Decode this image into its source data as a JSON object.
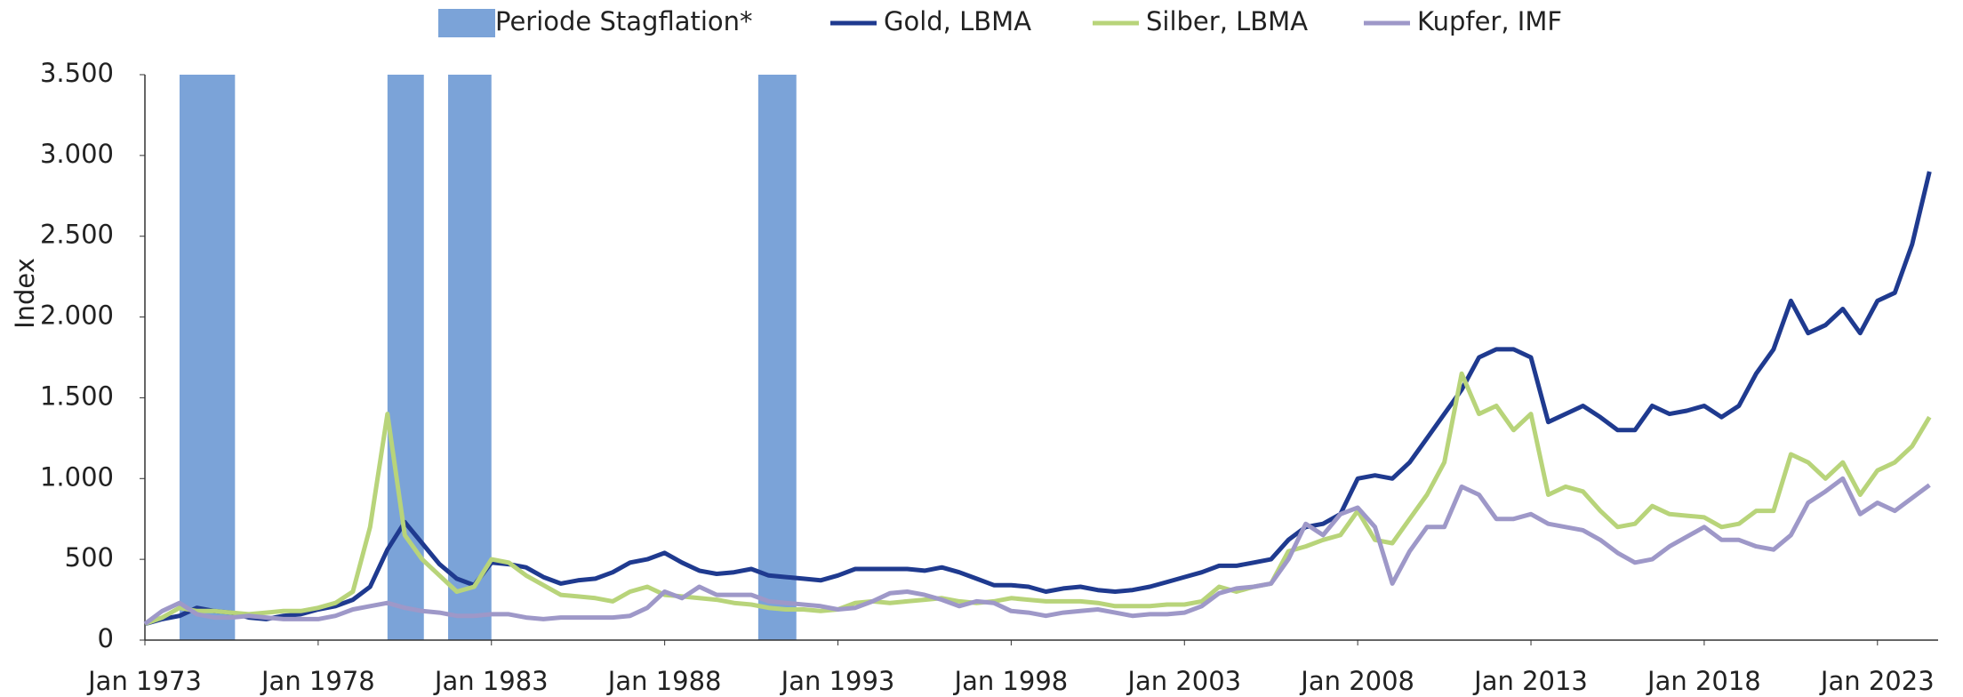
{
  "chart_data": {
    "type": "line",
    "y_label": "Index",
    "periods": {
      "name": "Periode Stagflation*",
      "color": "#7ba3d8",
      "ranges": [
        [
          1974.0,
          1975.6
        ],
        [
          1980.0,
          1981.05
        ],
        [
          1981.75,
          1983.0
        ],
        [
          1990.7,
          1991.8
        ]
      ]
    },
    "x": [
      1973,
      1973.5,
      1974,
      1974.5,
      1975,
      1975.5,
      1976,
      1976.5,
      1977,
      1977.5,
      1978,
      1978.5,
      1979,
      1979.5,
      1980,
      1980.5,
      1981,
      1981.5,
      1982,
      1982.5,
      1983,
      1983.5,
      1984,
      1984.5,
      1985,
      1985.5,
      1986,
      1986.5,
      1987,
      1987.5,
      1988,
      1988.5,
      1989,
      1989.5,
      1990,
      1990.5,
      1991,
      1991.5,
      1992,
      1992.5,
      1993,
      1993.5,
      1994,
      1994.5,
      1995,
      1995.5,
      1996,
      1996.5,
      1997,
      1997.5,
      1998,
      1998.5,
      1999,
      1999.5,
      2000,
      2000.5,
      2001,
      2001.5,
      2002,
      2002.5,
      2003,
      2003.5,
      2004,
      2004.5,
      2005,
      2005.5,
      2006,
      2006.5,
      2007,
      2007.5,
      2008,
      2008.5,
      2009,
      2009.5,
      2010,
      2010.5,
      2011,
      2011.5,
      2012,
      2012.5,
      2013,
      2013.5,
      2014,
      2014.5,
      2015,
      2015.5,
      2016,
      2016.5,
      2017,
      2017.5,
      2018,
      2018.5,
      2019,
      2019.5,
      2020,
      2020.5,
      2021,
      2021.5,
      2022,
      2022.5,
      2023,
      2023.5,
      2024,
      2024.5
    ],
    "series": [
      {
        "name": "Gold, LBMA",
        "color": "#1f3a8f",
        "values": [
          100,
          130,
          150,
          200,
          180,
          170,
          140,
          130,
          150,
          160,
          190,
          210,
          250,
          330,
          560,
          730,
          600,
          470,
          380,
          340,
          480,
          470,
          450,
          390,
          350,
          370,
          380,
          420,
          480,
          500,
          540,
          480,
          430,
          410,
          420,
          440,
          400,
          390,
          380,
          370,
          400,
          440,
          440,
          440,
          440,
          430,
          450,
          420,
          380,
          340,
          340,
          330,
          300,
          320,
          330,
          310,
          300,
          310,
          330,
          360,
          390,
          420,
          460,
          460,
          480,
          500,
          620,
          700,
          720,
          780,
          1000,
          1020,
          1000,
          1100,
          1250,
          1400,
          1550,
          1750,
          1800,
          1800,
          1750,
          1350,
          1400,
          1450,
          1380,
          1300,
          1300,
          1450,
          1400,
          1420,
          1450,
          1380,
          1450,
          1650,
          1800,
          2100,
          1900,
          1950,
          2050,
          1900,
          2100,
          2150,
          2450,
          2900
        ]
      },
      {
        "name": "Silber, LBMA",
        "color": "#b8d47a",
        "values": [
          100,
          140,
          200,
          180,
          180,
          170,
          160,
          170,
          180,
          180,
          200,
          230,
          300,
          700,
          1400,
          650,
          500,
          400,
          300,
          330,
          500,
          480,
          400,
          340,
          280,
          270,
          260,
          240,
          300,
          330,
          280,
          270,
          260,
          250,
          230,
          220,
          200,
          190,
          190,
          180,
          190,
          230,
          240,
          230,
          240,
          250,
          260,
          240,
          230,
          240,
          260,
          250,
          240,
          240,
          240,
          230,
          210,
          210,
          210,
          220,
          220,
          240,
          330,
          300,
          330,
          350,
          550,
          580,
          620,
          650,
          800,
          620,
          600,
          750,
          900,
          1100,
          1650,
          1400,
          1450,
          1300,
          1400,
          900,
          950,
          920,
          800,
          700,
          720,
          830,
          780,
          770,
          760,
          700,
          720,
          800,
          800,
          1150,
          1100,
          1000,
          1100,
          900,
          1050,
          1100,
          1200,
          1380
        ]
      },
      {
        "name": "Kupfer, IMF",
        "color": "#9e98c8",
        "values": [
          100,
          180,
          230,
          160,
          140,
          140,
          150,
          140,
          130,
          130,
          130,
          150,
          190,
          210,
          230,
          200,
          180,
          170,
          150,
          150,
          160,
          160,
          140,
          130,
          140,
          140,
          140,
          140,
          150,
          200,
          300,
          260,
          330,
          280,
          280,
          280,
          240,
          230,
          220,
          210,
          190,
          200,
          240,
          290,
          300,
          280,
          250,
          210,
          240,
          230,
          180,
          170,
          150,
          170,
          180,
          190,
          170,
          150,
          160,
          160,
          170,
          210,
          290,
          320,
          330,
          350,
          500,
          720,
          650,
          780,
          820,
          700,
          350,
          550,
          700,
          700,
          950,
          900,
          750,
          750,
          780,
          720,
          700,
          680,
          620,
          540,
          480,
          500,
          580,
          640,
          700,
          620,
          620,
          580,
          560,
          650,
          850,
          920,
          1000,
          780,
          850,
          800,
          880,
          960
        ]
      }
    ],
    "xlim": [
      1973,
      2024.75
    ],
    "xticks": [
      {
        "value": 1973,
        "label": "Jan 1973"
      },
      {
        "value": 1978,
        "label": "Jan 1978"
      },
      {
        "value": 1983,
        "label": "Jan 1983"
      },
      {
        "value": 1988,
        "label": "Jan 1988"
      },
      {
        "value": 1993,
        "label": "Jan 1993"
      },
      {
        "value": 1998,
        "label": "Jan 1998"
      },
      {
        "value": 2003,
        "label": "Jan 2003"
      },
      {
        "value": 2008,
        "label": "Jan 2008"
      },
      {
        "value": 2013,
        "label": "Jan 2013"
      },
      {
        "value": 2018,
        "label": "Jan 2018"
      },
      {
        "value": 2023,
        "label": "Jan 2023"
      }
    ],
    "ylim": [
      0,
      3500
    ],
    "yticks": [
      0,
      500,
      {
        "value": 1000,
        "label": "1.000"
      },
      {
        "value": 1500,
        "label": "1.500"
      },
      {
        "value": 2000,
        "label": "2.000"
      },
      {
        "value": 2500,
        "label": "2.500"
      },
      {
        "value": 3000,
        "label": "3.000"
      },
      {
        "value": 3500,
        "label": "3.500"
      }
    ],
    "grid": false,
    "legend": "top"
  }
}
